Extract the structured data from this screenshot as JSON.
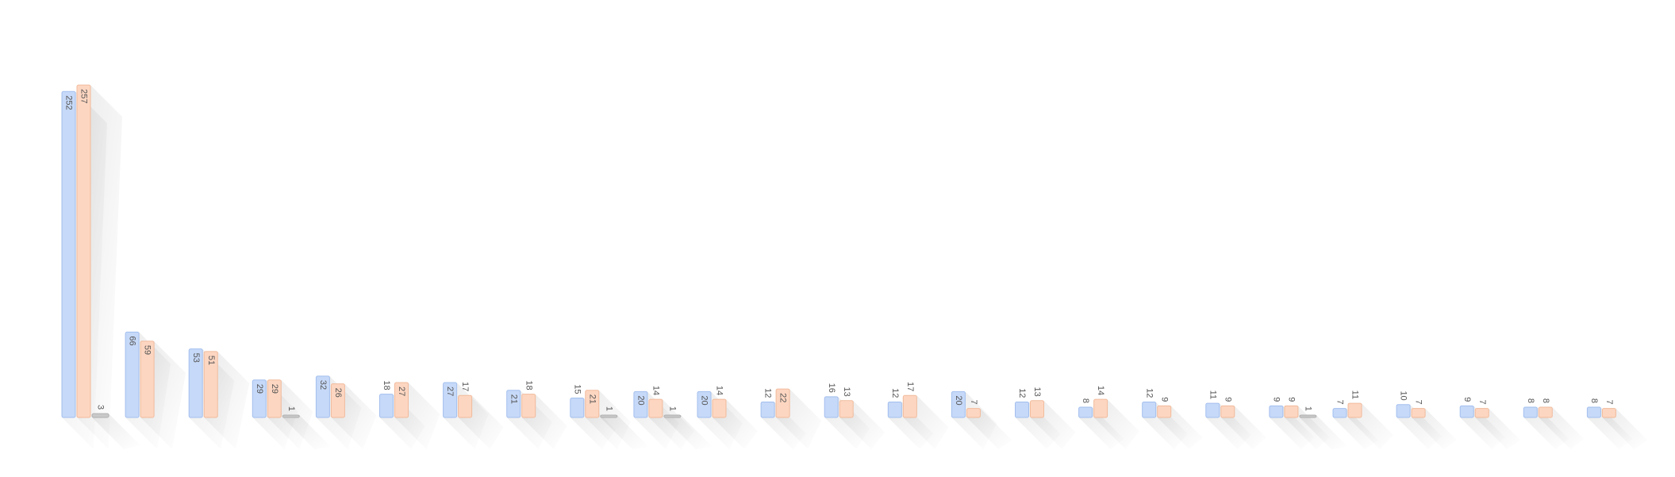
{
  "chart_data": {
    "type": "bar",
    "categories": [
      null,
      null,
      null,
      null,
      null,
      null,
      null,
      null,
      null,
      null,
      null,
      null,
      null,
      null,
      null,
      null,
      null,
      null,
      null,
      null,
      null,
      null,
      null,
      null,
      null
    ],
    "series": [
      {
        "color": "#c6d9f8",
        "values": [
          252,
          66,
          53,
          29,
          32,
          18,
          27,
          21,
          15,
          20,
          20,
          12,
          16,
          12,
          20,
          12,
          8,
          12,
          11,
          9,
          7,
          10,
          9,
          8,
          8
        ]
      },
      {
        "color": "#fdd6c1",
        "values": [
          257,
          59,
          51,
          29,
          26,
          27,
          17,
          18,
          21,
          14,
          14,
          22,
          13,
          17,
          7,
          13,
          14,
          9,
          9,
          9,
          11,
          7,
          7,
          8,
          7
        ]
      },
      {
        "color": "#c9c9c9",
        "values": [
          3,
          null,
          null,
          1,
          null,
          null,
          null,
          null,
          1,
          1,
          null,
          null,
          null,
          null,
          null,
          null,
          null,
          null,
          null,
          1,
          null,
          null,
          null,
          null,
          null
        ]
      }
    ]
  }
}
